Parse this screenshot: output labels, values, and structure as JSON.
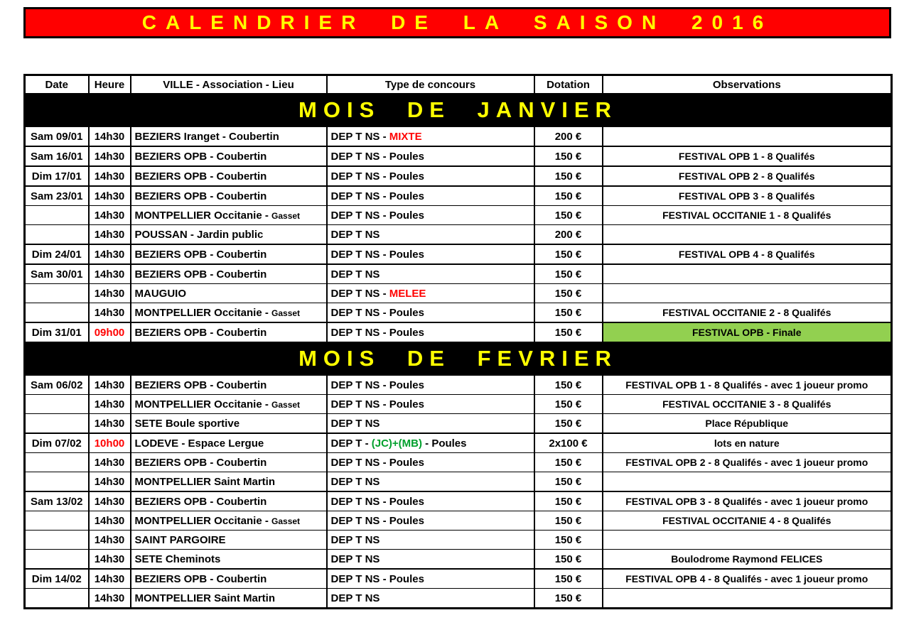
{
  "banner": {
    "title": "CALENDRIER DE LA SAISON 2016"
  },
  "colors": {
    "banner_bg": "#ff0000",
    "banner_text": "#ffff00",
    "month_band_bg": "#000000",
    "month_band_text": "#ffff00",
    "highlight_red": "#ff0000",
    "highlight_green": "#00a02c",
    "finale_green_bg": "#92d050"
  },
  "table": {
    "columns": [
      "Date",
      "Heure",
      "VILLE - Association - Lieu",
      "Type de concours",
      "Dotation",
      "Observations"
    ],
    "sections": [
      {
        "title": "MOIS DE JANVIER",
        "rows": [
          {
            "new_date": true,
            "date": "Sam 09/01",
            "heure": "14h30",
            "ville": "BEZIERS Iranget - Coubertin",
            "type": {
              "pre": "DEP T NS - ",
              "hl": "MIXTE",
              "hl_color": "red",
              "post": ""
            },
            "dotation": "200 €",
            "obs": ""
          },
          {
            "new_date": true,
            "date": "Sam 16/01",
            "heure": "14h30",
            "ville": "BEZIERS OPB - Coubertin",
            "type": {
              "pre": "DEP T NS - Poules"
            },
            "dotation": "150 €",
            "obs": "FESTIVAL OPB 1 - 8 Qualifés"
          },
          {
            "new_date": true,
            "date": "Dim 17/01",
            "heure": "14h30",
            "ville": "BEZIERS OPB - Coubertin",
            "type": {
              "pre": "DEP T NS - Poules"
            },
            "dotation": "150 €",
            "obs": "FESTIVAL OPB 2 - 8 Qualifés"
          },
          {
            "new_date": true,
            "date": "Sam 23/01",
            "heure": "14h30",
            "ville": "BEZIERS OPB - Coubertin",
            "type": {
              "pre": "DEP T NS - Poules"
            },
            "dotation": "150 €",
            "obs": "FESTIVAL OPB 3 - 8 Qualifés"
          },
          {
            "date": "",
            "heure": "14h30",
            "ville": "MONTPELLIER Occitanie - ",
            "ville_small": "Gasset",
            "type": {
              "pre": "DEP T NS - Poules"
            },
            "dotation": "150 €",
            "obs": "FESTIVAL OCCITANIE 1 - 8 Qualifés"
          },
          {
            "date": "",
            "heure": "14h30",
            "ville": "POUSSAN - Jardin public",
            "type": {
              "pre": "DEP T NS"
            },
            "dotation": "200 €",
            "obs": ""
          },
          {
            "new_date": true,
            "date": "Dim 24/01",
            "heure": "14h30",
            "ville": "BEZIERS OPB - Coubertin",
            "type": {
              "pre": "DEP T NS - Poules"
            },
            "dotation": "150 €",
            "obs": "FESTIVAL OPB 4 - 8 Qualifés"
          },
          {
            "new_date": true,
            "date": "Sam 30/01",
            "heure": "14h30",
            "ville": "BEZIERS OPB - Coubertin",
            "type": {
              "pre": "DEP T NS"
            },
            "dotation": "150 €",
            "obs": ""
          },
          {
            "date": "",
            "heure": "14h30",
            "ville": "MAUGUIO",
            "type": {
              "pre": "DEP T NS - ",
              "hl": "MELEE",
              "hl_color": "red",
              "post": ""
            },
            "dotation": "150 €",
            "obs": ""
          },
          {
            "date": "",
            "heure": "14h30",
            "ville": "MONTPELLIER Occitanie - ",
            "ville_small": "Gasset",
            "type": {
              "pre": "DEP T NS - Poules"
            },
            "dotation": "150 €",
            "obs": "FESTIVAL OCCITANIE 2 - 8 Qualifés"
          },
          {
            "new_date": true,
            "date": "Dim 31/01",
            "heure": "09h00",
            "heure_color": "red",
            "ville": "BEZIERS OPB - Coubertin",
            "type": {
              "pre": "DEP T NS - Poules"
            },
            "dotation": "150 €",
            "obs": "FESTIVAL OPB - Finale",
            "obs_bg": "green"
          }
        ]
      },
      {
        "title": "MOIS DE FEVRIER",
        "rows": [
          {
            "new_date": true,
            "date": "Sam 06/02",
            "heure": "14h30",
            "ville": "BEZIERS OPB - Coubertin",
            "type": {
              "pre": "DEP T NS - Poules"
            },
            "dotation": "150 €",
            "obs": "FESTIVAL OPB 1 - 8 Qualifés - avec 1 joueur promo"
          },
          {
            "date": "",
            "heure": "14h30",
            "ville": "MONTPELLIER Occitanie - ",
            "ville_small": "Gasset",
            "type": {
              "pre": "DEP T NS - Poules"
            },
            "dotation": "150 €",
            "obs": "FESTIVAL OCCITANIE 3 - 8 Qualifés"
          },
          {
            "date": "",
            "heure": "14h30",
            "ville": "SETE Boule sportive",
            "type": {
              "pre": "DEP T NS"
            },
            "dotation": "150 €",
            "obs": "Place République"
          },
          {
            "new_date": true,
            "date": "Dim 07/02",
            "heure": "10h00",
            "heure_color": "red",
            "ville": "LODEVE - Espace Lergue",
            "type": {
              "pre": "DEP T - ",
              "hl": "(JC)+(MB)",
              "hl_color": "green",
              "post": " - Poules"
            },
            "dotation": "2x100 €",
            "obs": "lots en nature"
          },
          {
            "date": "",
            "heure": "14h30",
            "ville": "BEZIERS OPB - Coubertin",
            "type": {
              "pre": "DEP T NS - Poules"
            },
            "dotation": "150 €",
            "obs": "FESTIVAL OPB 2 - 8 Qualifés - avec 1 joueur promo"
          },
          {
            "date": "",
            "heure": "14h30",
            "ville": "MONTPELLIER Saint Martin",
            "type": {
              "pre": "DEP T NS"
            },
            "dotation": "150 €",
            "obs": ""
          },
          {
            "new_date": true,
            "date": "Sam 13/02",
            "heure": "14h30",
            "ville": "BEZIERS OPB - Coubertin",
            "type": {
              "pre": "DEP T NS - Poules"
            },
            "dotation": "150 €",
            "obs": "FESTIVAL OPB 3 - 8 Qualifés - avec 1 joueur promo"
          },
          {
            "date": "",
            "heure": "14h30",
            "ville": "MONTPELLIER Occitanie - ",
            "ville_small": "Gasset",
            "type": {
              "pre": "DEP T NS - Poules"
            },
            "dotation": "150 €",
            "obs": "FESTIVAL OCCITANIE 4 - 8 Qualifés"
          },
          {
            "date": "",
            "heure": "14h30",
            "ville": "SAINT PARGOIRE",
            "type": {
              "pre": "DEP T NS"
            },
            "dotation": "150 €",
            "obs": ""
          },
          {
            "date": "",
            "heure": "14h30",
            "ville": "SETE Cheminots",
            "type": {
              "pre": "DEP T NS"
            },
            "dotation": "150 €",
            "obs": "Boulodrome Raymond FELICES"
          },
          {
            "new_date": true,
            "date": "Dim 14/02",
            "heure": "14h30",
            "ville": "BEZIERS OPB - Coubertin",
            "type": {
              "pre": "DEP T NS - Poules"
            },
            "dotation": "150 €",
            "obs": "FESTIVAL OPB 4 - 8 Qualifés - avec 1 joueur promo"
          },
          {
            "date": "",
            "heure": "14h30",
            "ville": "MONTPELLIER Saint Martin",
            "type": {
              "pre": "DEP T NS"
            },
            "dotation": "150 €",
            "obs": ""
          }
        ]
      }
    ]
  }
}
